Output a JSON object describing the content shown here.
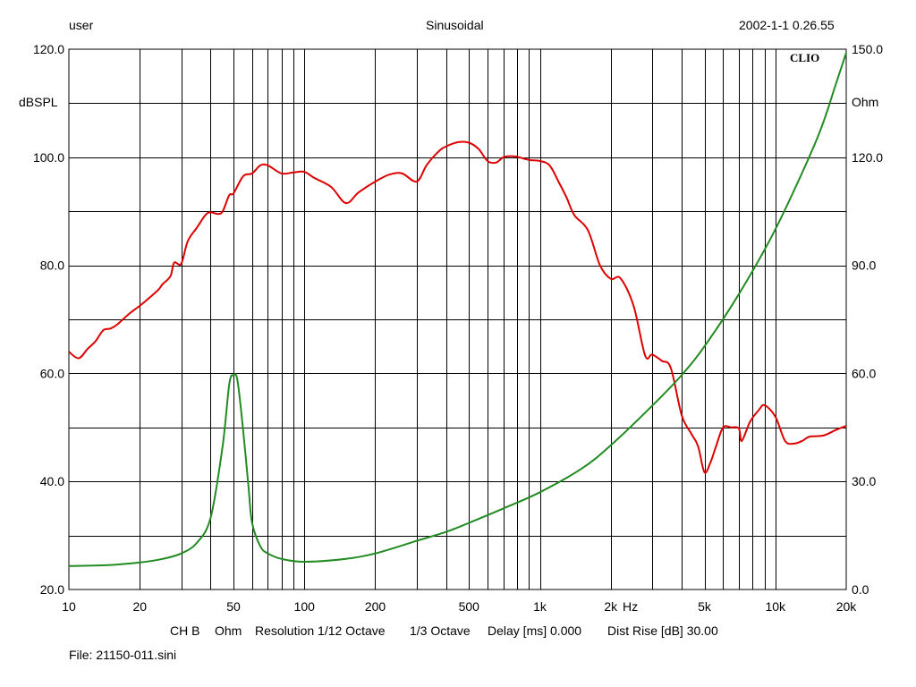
{
  "header": {
    "left": "user",
    "center": "Sinusoidal",
    "right": "2002-1-1 0.26.55"
  },
  "watermark": "CLIO",
  "chart_data": {
    "type": "line",
    "x_scale": "log",
    "xlim": [
      10,
      20000
    ],
    "x_ticks": [
      10,
      20,
      50,
      100,
      200,
      500,
      1000,
      2000,
      5000,
      10000,
      20000
    ],
    "x_tick_labels": [
      "10",
      "20",
      "50",
      "100",
      "200",
      "500",
      "1k",
      "2k",
      "5k",
      "10k",
      "20k"
    ],
    "x_unit_label": "Hz",
    "left_axis": {
      "label": "dBSPL",
      "ylim": [
        20,
        120
      ],
      "tick_labels": [
        "20.0",
        "40.0",
        "60.0",
        "80.0",
        "100.0",
        "120.0"
      ]
    },
    "right_axis": {
      "label": "Ohm",
      "ylim": [
        0,
        150
      ],
      "tick_labels": [
        "0.0",
        "30.0",
        "60.0",
        "90.0",
        "120.0",
        "150.0"
      ]
    },
    "grid": true,
    "series": [
      {
        "axis": "left",
        "color": "#dd0000",
        "points": [
          [
            10,
            64
          ],
          [
            11,
            62.8
          ],
          [
            12,
            64.5
          ],
          [
            13,
            66
          ],
          [
            14,
            68
          ],
          [
            15,
            68.3
          ],
          [
            16,
            69
          ],
          [
            18,
            71
          ],
          [
            20,
            72.5
          ],
          [
            22,
            74
          ],
          [
            24,
            75.5
          ],
          [
            25,
            76.5
          ],
          [
            27,
            78
          ],
          [
            28,
            80.5
          ],
          [
            30,
            80.3
          ],
          [
            32,
            84.5
          ],
          [
            35,
            87
          ],
          [
            38,
            89.3
          ],
          [
            40,
            89.8
          ],
          [
            43,
            89.5
          ],
          [
            45,
            90
          ],
          [
            48,
            93
          ],
          [
            50,
            93.3
          ],
          [
            55,
            96.5
          ],
          [
            60,
            97
          ],
          [
            65,
            98.5
          ],
          [
            70,
            98.5
          ],
          [
            80,
            97
          ],
          [
            90,
            97.2
          ],
          [
            100,
            97.3
          ],
          [
            110,
            96.2
          ],
          [
            130,
            94.5
          ],
          [
            150,
            91.5
          ],
          [
            170,
            93.5
          ],
          [
            200,
            95.5
          ],
          [
            230,
            96.8
          ],
          [
            260,
            97
          ],
          [
            300,
            95.5
          ],
          [
            330,
            98.5
          ],
          [
            370,
            101
          ],
          [
            400,
            102
          ],
          [
            450,
            102.8
          ],
          [
            500,
            102.7
          ],
          [
            550,
            101.5
          ],
          [
            600,
            99.3
          ],
          [
            650,
            99
          ],
          [
            700,
            100
          ],
          [
            750,
            100.2
          ],
          [
            800,
            100.1
          ],
          [
            900,
            99.5
          ],
          [
            1000,
            99.3
          ],
          [
            1100,
            98.5
          ],
          [
            1200,
            95.5
          ],
          [
            1300,
            92.5
          ],
          [
            1400,
            89.3
          ],
          [
            1600,
            86.5
          ],
          [
            1800,
            80
          ],
          [
            2000,
            77.5
          ],
          [
            2200,
            77.6
          ],
          [
            2500,
            72.5
          ],
          [
            2800,
            63.3
          ],
          [
            3000,
            63.5
          ],
          [
            3300,
            62.3
          ],
          [
            3600,
            61
          ],
          [
            4000,
            52.3
          ],
          [
            4400,
            48.8
          ],
          [
            4700,
            46.5
          ],
          [
            5000,
            41.7
          ],
          [
            5300,
            43.5
          ],
          [
            5600,
            46.5
          ],
          [
            6000,
            50
          ],
          [
            6500,
            50
          ],
          [
            7000,
            49.8
          ],
          [
            7200,
            47.5
          ],
          [
            7800,
            51
          ],
          [
            8500,
            53.2
          ],
          [
            9000,
            54.1
          ],
          [
            10000,
            52
          ],
          [
            11000,
            47.5
          ],
          [
            12000,
            47
          ],
          [
            13000,
            47.5
          ],
          [
            14000,
            48.3
          ],
          [
            16000,
            48.5
          ],
          [
            18000,
            49.5
          ],
          [
            20000,
            50.3
          ]
        ]
      },
      {
        "axis": "right",
        "color": "#228b22",
        "points": [
          [
            10,
            6.5
          ],
          [
            15,
            6.8
          ],
          [
            20,
            7.5
          ],
          [
            25,
            8.5
          ],
          [
            30,
            10
          ],
          [
            35,
            13
          ],
          [
            40,
            20
          ],
          [
            45,
            40
          ],
          [
            48,
            57
          ],
          [
            50,
            59.5
          ],
          [
            52,
            58
          ],
          [
            55,
            44
          ],
          [
            58,
            28
          ],
          [
            60,
            18.5
          ],
          [
            65,
            12
          ],
          [
            70,
            10
          ],
          [
            80,
            8.5
          ],
          [
            100,
            7.7
          ],
          [
            150,
            8.5
          ],
          [
            200,
            10
          ],
          [
            300,
            13.5
          ],
          [
            400,
            16
          ],
          [
            500,
            18.5
          ],
          [
            700,
            22.5
          ],
          [
            1000,
            27
          ],
          [
            1500,
            33.5
          ],
          [
            2000,
            40
          ],
          [
            3000,
            51
          ],
          [
            4000,
            59.5
          ],
          [
            5000,
            67.5
          ],
          [
            7000,
            82
          ],
          [
            10000,
            100
          ],
          [
            15000,
            125
          ],
          [
            18000,
            140
          ],
          [
            20000,
            149
          ]
        ]
      }
    ]
  },
  "footer": {
    "channel": "CH B",
    "unit": "Ohm",
    "resolution": "Resolution 1/12 Octave",
    "smoothing": "1/3 Octave",
    "delay": "Delay [ms] 0.000",
    "dist_rise": "Dist Rise [dB] 30.00",
    "file": "File: 21150-011.sini"
  }
}
